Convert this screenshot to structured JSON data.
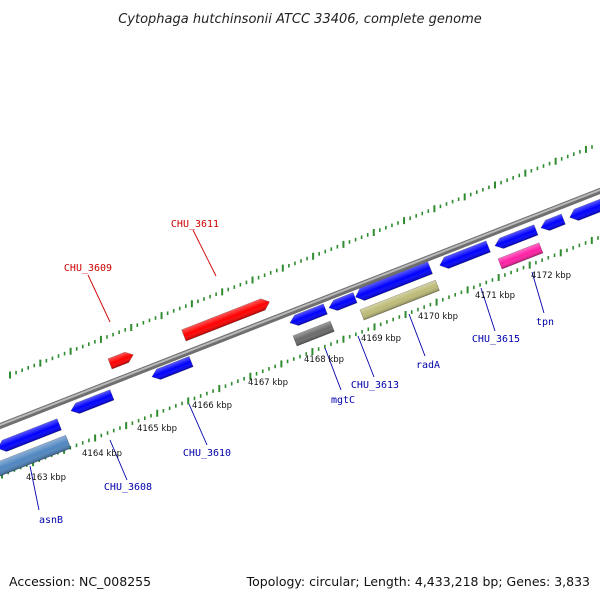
{
  "title": "Cytophaga hutchinsonii ATCC 33406, complete genome",
  "footer": {
    "accession": "Accession: NC_008255",
    "topology": "Topology: circular; Length: 4,433,218 bp; Genes: 3,833"
  },
  "colors": {
    "backbone": "#8e8e8e",
    "tick": "#2e8b2e",
    "forward_gene": "#ff0000",
    "reverse_gene": "#0000ff",
    "label_forward": "#cc0000",
    "label_reverse": "#0000aa",
    "asnB": "#4f86c0",
    "radA": "#bdbb77",
    "mgtC": "#6a6a6a",
    "tpn": "#ff1fa5"
  },
  "kbp_ticks": [
    {
      "text": "4163 kbp"
    },
    {
      "text": "4164 kbp"
    },
    {
      "text": "4165 kbp"
    },
    {
      "text": "4166 kbp"
    },
    {
      "text": "4167 kbp"
    },
    {
      "text": "4168 kbp"
    },
    {
      "text": "4169 kbp"
    },
    {
      "text": "4170 kbp"
    },
    {
      "text": "4171 kbp"
    },
    {
      "text": "4172 kbp"
    }
  ],
  "gene_labels": [
    {
      "name": "CHU_3609",
      "strand": "forward"
    },
    {
      "name": "CHU_3611",
      "strand": "forward"
    },
    {
      "name": "asnB",
      "strand": "reverse"
    },
    {
      "name": "CHU_3608",
      "strand": "reverse"
    },
    {
      "name": "CHU_3610",
      "strand": "reverse"
    },
    {
      "name": "mgtC",
      "strand": "reverse"
    },
    {
      "name": "CHU_3613",
      "strand": "reverse"
    },
    {
      "name": "radA",
      "strand": "reverse"
    },
    {
      "name": "CHU_3615",
      "strand": "reverse"
    },
    {
      "name": "tpn",
      "strand": "reverse"
    }
  ]
}
